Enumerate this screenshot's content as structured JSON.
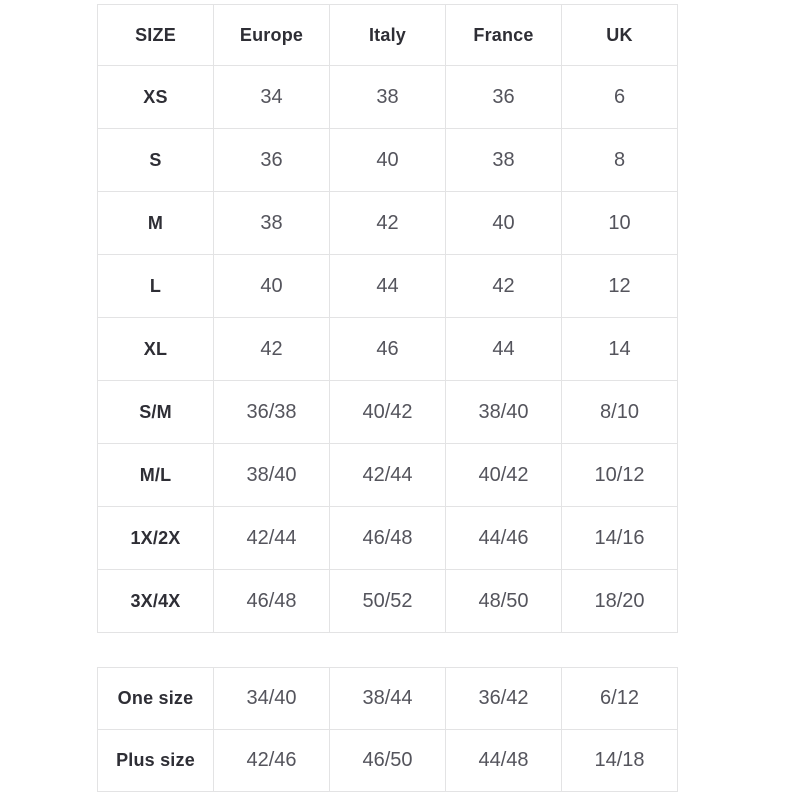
{
  "colors": {
    "background": "#ffffff",
    "border": "#e3e3e4",
    "header_text": "#2e2e35",
    "value_text": "#54545c"
  },
  "size_table": {
    "columns": [
      "SIZE",
      "Europe",
      "Italy",
      "France",
      "UK"
    ],
    "rows": [
      {
        "size": "XS",
        "values": [
          "34",
          "38",
          "36",
          "6"
        ]
      },
      {
        "size": "S",
        "values": [
          "36",
          "40",
          "38",
          "8"
        ]
      },
      {
        "size": "M",
        "values": [
          "38",
          "42",
          "40",
          "10"
        ]
      },
      {
        "size": "L",
        "values": [
          "40",
          "44",
          "42",
          "12"
        ]
      },
      {
        "size": "XL",
        "values": [
          "42",
          "46",
          "44",
          "14"
        ]
      },
      {
        "size": "S/M",
        "values": [
          "36/38",
          "40/42",
          "38/40",
          "8/10"
        ]
      },
      {
        "size": "M/L",
        "values": [
          "38/40",
          "42/44",
          "40/42",
          "10/12"
        ]
      },
      {
        "size": "1X/2X",
        "values": [
          "42/44",
          "46/48",
          "44/46",
          "14/16"
        ]
      },
      {
        "size": "3X/4X",
        "values": [
          "46/48",
          "50/52",
          "48/50",
          "18/20"
        ]
      }
    ]
  },
  "special_table": {
    "rows": [
      {
        "size": "One size",
        "values": [
          "34/40",
          "38/44",
          "36/42",
          "6/12"
        ]
      },
      {
        "size": "Plus size",
        "values": [
          "42/46",
          "46/50",
          "44/48",
          "14/18"
        ]
      }
    ]
  }
}
